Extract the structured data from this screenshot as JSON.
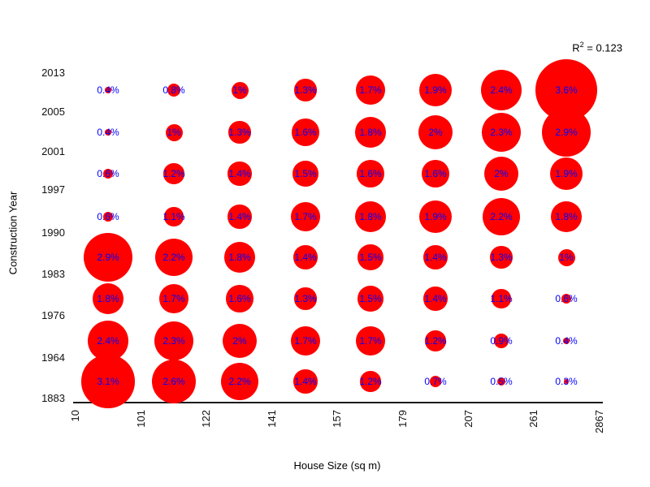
{
  "chart_data": {
    "type": "bubble",
    "xlabel": "House Size (sq m)",
    "ylabel": "Construction Year",
    "annotation": {
      "prefix": "R",
      "superscript": "2",
      "rest": " = 0.123"
    },
    "x_tick_labels": [
      "10",
      "101",
      "122",
      "141",
      "157",
      "179",
      "207",
      "261",
      "2867"
    ],
    "y_tick_labels": [
      "2013",
      "2005",
      "2001",
      "1997",
      "1990",
      "1983",
      "1976",
      "1964",
      "1883"
    ],
    "row_order_note": "rows listed top (newest year bin) to bottom (oldest year bin); columns left (smallest house size bin) to right (largest)",
    "percent_labels": [
      [
        "0.4%",
        "0.8%",
        "1%",
        "1.3%",
        "1.7%",
        "1.9%",
        "2.4%",
        "3.6%"
      ],
      [
        "0.4%",
        "1%",
        "1.3%",
        "1.6%",
        "1.8%",
        "2%",
        "2.3%",
        "2.9%"
      ],
      [
        "0.6%",
        "1.2%",
        "1.4%",
        "1.5%",
        "1.6%",
        "1.6%",
        "2%",
        "1.9%"
      ],
      [
        "0.6%",
        "1.1%",
        "1.4%",
        "1.7%",
        "1.8%",
        "1.9%",
        "2.2%",
        "1.8%"
      ],
      [
        "2.9%",
        "2.2%",
        "1.8%",
        "1.4%",
        "1.5%",
        "1.4%",
        "1.3%",
        "1%"
      ],
      [
        "1.8%",
        "1.7%",
        "1.6%",
        "1.3%",
        "1.5%",
        "1.4%",
        "1.1%",
        "0.6%"
      ],
      [
        "2.4%",
        "2.3%",
        "2%",
        "1.7%",
        "1.7%",
        "1.2%",
        "0.9%",
        "0.4%"
      ],
      [
        "3.1%",
        "2.6%",
        "2.2%",
        "1.4%",
        "1.2%",
        "0.7%",
        "0.5%",
        "0.3%"
      ]
    ],
    "percent_values": [
      [
        0.4,
        0.8,
        1.0,
        1.3,
        1.7,
        1.9,
        2.4,
        3.6
      ],
      [
        0.4,
        1.0,
        1.3,
        1.6,
        1.8,
        2.0,
        2.3,
        2.9
      ],
      [
        0.6,
        1.2,
        1.4,
        1.5,
        1.6,
        1.6,
        2.0,
        1.9
      ],
      [
        0.6,
        1.1,
        1.4,
        1.7,
        1.8,
        1.9,
        2.2,
        1.8
      ],
      [
        2.9,
        2.2,
        1.8,
        1.4,
        1.5,
        1.4,
        1.3,
        1.0
      ],
      [
        1.8,
        1.7,
        1.6,
        1.3,
        1.5,
        1.4,
        1.1,
        0.6
      ],
      [
        2.4,
        2.3,
        2.0,
        1.7,
        1.7,
        1.2,
        0.9,
        0.4
      ],
      [
        3.1,
        2.6,
        2.2,
        1.4,
        1.2,
        0.7,
        0.5,
        0.3
      ]
    ],
    "bubble_color": "#ff0000",
    "label_color": "#0000ff",
    "axis_text_color": "#111111",
    "grid": false,
    "legend": false
  }
}
